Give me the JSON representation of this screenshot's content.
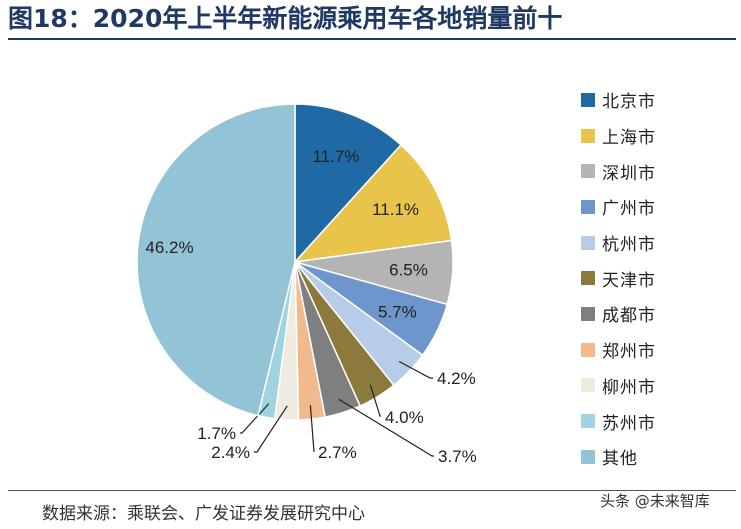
{
  "figure": {
    "title": "图18：2020年上半年新能源乘用车各地销量前十",
    "source": "数据来源：乘联会、广发证券发展研究中心",
    "watermark": "头条 @未来智库"
  },
  "chart_data": {
    "type": "pie",
    "title": "2020年上半年新能源乘用车各地销量前十",
    "unit": "%",
    "legend_position": "right",
    "slices": [
      {
        "label": "北京市",
        "value": 11.7,
        "display": "11.7%",
        "color": "#1f6aa5"
      },
      {
        "label": "上海市",
        "value": 11.1,
        "display": "11.1%",
        "color": "#e8c44a"
      },
      {
        "label": "深圳市",
        "value": 6.5,
        "display": "6.5%",
        "color": "#b4b4b4"
      },
      {
        "label": "广州市",
        "value": 5.7,
        "display": "5.7%",
        "color": "#6f96cc"
      },
      {
        "label": "杭州市",
        "value": 4.2,
        "display": "4.2%",
        "color": "#b7cce6"
      },
      {
        "label": "天津市",
        "value": 4.0,
        "display": "4.0%",
        "color": "#8c7a3c"
      },
      {
        "label": "成都市",
        "value": 3.7,
        "display": "3.7%",
        "color": "#7f7f7f"
      },
      {
        "label": "郑州市",
        "value": 2.7,
        "display": "2.7%",
        "color": "#f2b98c"
      },
      {
        "label": "柳州市",
        "value": 2.4,
        "display": "2.4%",
        "color": "#efebe0"
      },
      {
        "label": "苏州市",
        "value": 1.7,
        "display": "1.7%",
        "color": "#9fd3df"
      },
      {
        "label": "其他",
        "value": 46.2,
        "display": "46.2%",
        "color": "#92c4d6"
      }
    ]
  }
}
